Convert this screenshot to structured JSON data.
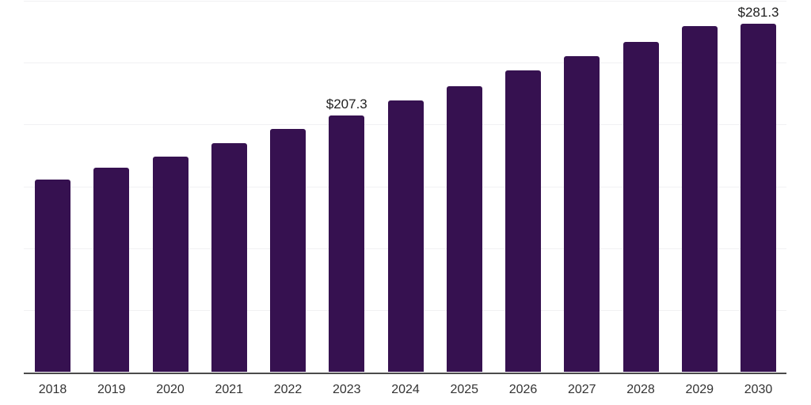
{
  "chart_data": {
    "type": "bar",
    "title": "",
    "xlabel": "",
    "ylabel": "",
    "categories": [
      "2018",
      "2019",
      "2020",
      "2021",
      "2022",
      "2023",
      "2024",
      "2025",
      "2026",
      "2027",
      "2028",
      "2029",
      "2030"
    ],
    "values": [
      155.7,
      165.3,
      174.0,
      185.0,
      196.5,
      207.3,
      219.1,
      230.9,
      243.6,
      254.7,
      266.8,
      279.2,
      281.3
    ],
    "data_labels": [
      {
        "index": 5,
        "text": "$207.3"
      },
      {
        "index": 12,
        "text": "$281.3"
      }
    ],
    "ylim": [
      0,
      300
    ],
    "grid": true,
    "grid_interval": 50,
    "legend_position": "none",
    "colors": {
      "bar": "#361150",
      "axis_line": "#4b4b4b",
      "gridline": "#f1f1f3",
      "category_label": "#333333",
      "data_label": "#1f1f1f",
      "background": "#ffffff"
    }
  }
}
